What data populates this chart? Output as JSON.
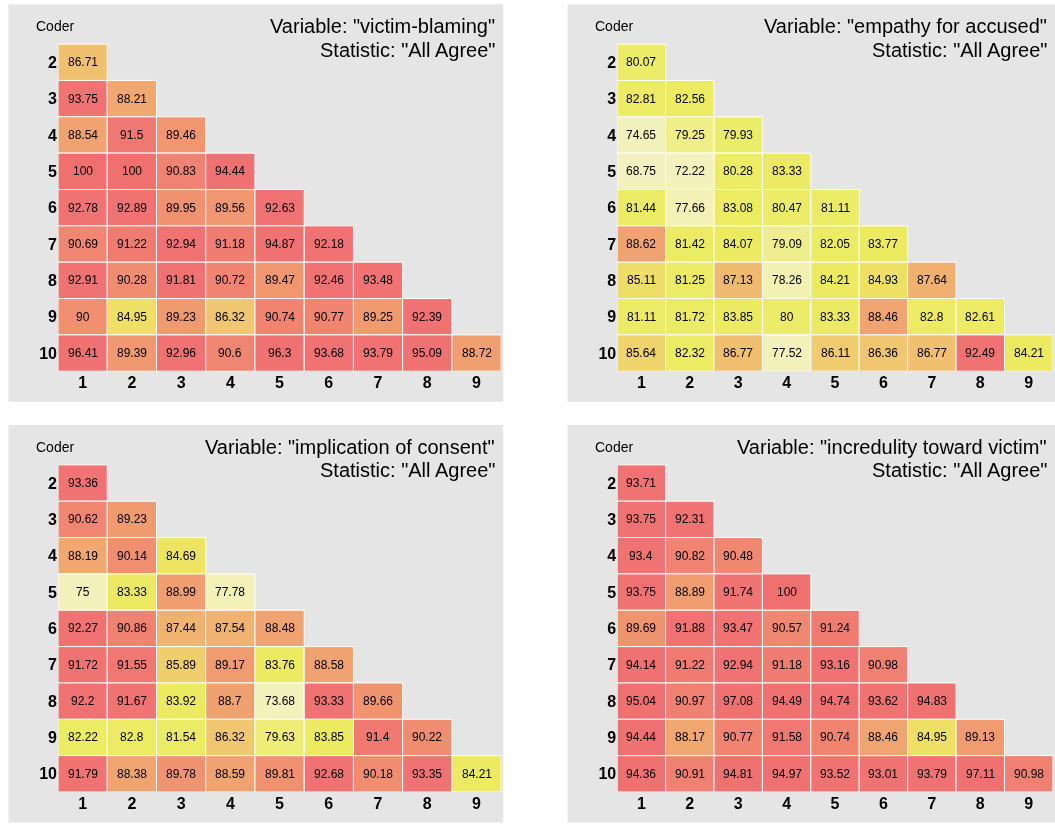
{
  "chart_data": [
    {
      "type": "heatmap",
      "title": "Variable: \"victim-blaming\"",
      "subtitle": "Statistic: \"All Agree\"",
      "xlabel": "Coder",
      "categories": [
        "1",
        "2",
        "3",
        "4",
        "5",
        "6",
        "7",
        "8",
        "9"
      ],
      "y_categories": [
        "2",
        "3",
        "4",
        "5",
        "6",
        "7",
        "8",
        "9",
        "10"
      ],
      "data_labels": true,
      "cells": [
        [
          86.71,
          null,
          null,
          null,
          null,
          null,
          null,
          null,
          null
        ],
        [
          93.75,
          88.21,
          null,
          null,
          null,
          null,
          null,
          null,
          null
        ],
        [
          88.54,
          91.5,
          89.46,
          null,
          null,
          null,
          null,
          null,
          null
        ],
        [
          100,
          100,
          90.83,
          94.44,
          null,
          null,
          null,
          null,
          null
        ],
        [
          92.78,
          92.89,
          89.95,
          89.56,
          92.63,
          null,
          null,
          null,
          null
        ],
        [
          90.69,
          91.22,
          92.94,
          91.18,
          94.87,
          92.18,
          null,
          null,
          null
        ],
        [
          92.91,
          90.28,
          91.81,
          90.72,
          89.47,
          92.46,
          93.48,
          null,
          null
        ],
        [
          90,
          84.95,
          89.23,
          86.32,
          90.74,
          90.77,
          89.25,
          92.39,
          null
        ],
        [
          96.41,
          89.39,
          92.96,
          90.6,
          96.3,
          93.68,
          93.79,
          95.09,
          88.72
        ]
      ]
    },
    {
      "type": "heatmap",
      "title": "Variable: \"empathy for accused\"",
      "subtitle": "Statistic: \"All Agree\"",
      "xlabel": "Coder",
      "categories": [
        "1",
        "2",
        "3",
        "4",
        "5",
        "6",
        "7",
        "8",
        "9"
      ],
      "y_categories": [
        "2",
        "3",
        "4",
        "5",
        "6",
        "7",
        "8",
        "9",
        "10"
      ],
      "data_labels": true,
      "cells": [
        [
          80.07,
          null,
          null,
          null,
          null,
          null,
          null,
          null,
          null
        ],
        [
          82.81,
          82.56,
          null,
          null,
          null,
          null,
          null,
          null,
          null
        ],
        [
          74.65,
          79.25,
          79.93,
          null,
          null,
          null,
          null,
          null,
          null
        ],
        [
          68.75,
          72.22,
          80.28,
          83.33,
          null,
          null,
          null,
          null,
          null
        ],
        [
          81.44,
          77.66,
          83.08,
          80.47,
          81.11,
          null,
          null,
          null,
          null
        ],
        [
          88.62,
          81.42,
          84.07,
          79.09,
          82.05,
          83.77,
          null,
          null,
          null
        ],
        [
          85.11,
          81.25,
          87.13,
          78.26,
          84.21,
          84.93,
          87.64,
          null,
          null
        ],
        [
          81.11,
          81.72,
          83.85,
          80,
          83.33,
          88.46,
          82.8,
          82.61,
          null
        ],
        [
          85.64,
          82.32,
          86.77,
          77.52,
          86.11,
          86.36,
          86.77,
          92.49,
          84.21
        ]
      ]
    },
    {
      "type": "heatmap",
      "title": "Variable: \"implication of consent\"",
      "subtitle": "Statistic: \"All Agree\"",
      "xlabel": "Coder",
      "categories": [
        "1",
        "2",
        "3",
        "4",
        "5",
        "6",
        "7",
        "8",
        "9"
      ],
      "y_categories": [
        "2",
        "3",
        "4",
        "5",
        "6",
        "7",
        "8",
        "9",
        "10"
      ],
      "data_labels": true,
      "cells": [
        [
          93.36,
          null,
          null,
          null,
          null,
          null,
          null,
          null,
          null
        ],
        [
          90.62,
          89.23,
          null,
          null,
          null,
          null,
          null,
          null,
          null
        ],
        [
          88.19,
          90.14,
          84.69,
          null,
          null,
          null,
          null,
          null,
          null
        ],
        [
          75,
          83.33,
          88.99,
          77.78,
          null,
          null,
          null,
          null,
          null
        ],
        [
          92.27,
          90.86,
          87.44,
          87.54,
          88.48,
          null,
          null,
          null,
          null
        ],
        [
          91.72,
          91.55,
          85.89,
          89.17,
          83.76,
          88.58,
          null,
          null,
          null
        ],
        [
          92.2,
          91.67,
          83.92,
          88.7,
          73.68,
          93.33,
          89.66,
          null,
          null
        ],
        [
          82.22,
          82.8,
          81.54,
          86.32,
          79.63,
          83.85,
          91.4,
          90.22,
          null
        ],
        [
          91.79,
          88.38,
          89.78,
          88.59,
          89.81,
          92.68,
          90.18,
          93.35,
          84.21
        ]
      ]
    },
    {
      "type": "heatmap",
      "title": "Variable: \"incredulity toward victim\"",
      "subtitle": "Statistic: \"All Agree\"",
      "xlabel": "Coder",
      "categories": [
        "1",
        "2",
        "3",
        "4",
        "5",
        "6",
        "7",
        "8",
        "9"
      ],
      "y_categories": [
        "2",
        "3",
        "4",
        "5",
        "6",
        "7",
        "8",
        "9",
        "10"
      ],
      "data_labels": true,
      "cells": [
        [
          93.71,
          null,
          null,
          null,
          null,
          null,
          null,
          null,
          null
        ],
        [
          93.75,
          92.31,
          null,
          null,
          null,
          null,
          null,
          null,
          null
        ],
        [
          93.4,
          90.82,
          90.48,
          null,
          null,
          null,
          null,
          null,
          null
        ],
        [
          93.75,
          88.89,
          91.74,
          100,
          null,
          null,
          null,
          null,
          null
        ],
        [
          89.69,
          91.88,
          93.47,
          90.57,
          91.24,
          null,
          null,
          null,
          null
        ],
        [
          94.14,
          91.22,
          92.94,
          91.18,
          93.16,
          90.98,
          null,
          null,
          null
        ],
        [
          95.04,
          90.97,
          97.08,
          94.49,
          94.74,
          93.62,
          94.83,
          null,
          null
        ],
        [
          94.44,
          88.17,
          90.77,
          91.58,
          90.74,
          88.46,
          84.95,
          89.13,
          null
        ],
        [
          94.36,
          90.91,
          94.81,
          94.97,
          93.52,
          93.01,
          93.79,
          97.11,
          90.98
        ]
      ]
    }
  ]
}
